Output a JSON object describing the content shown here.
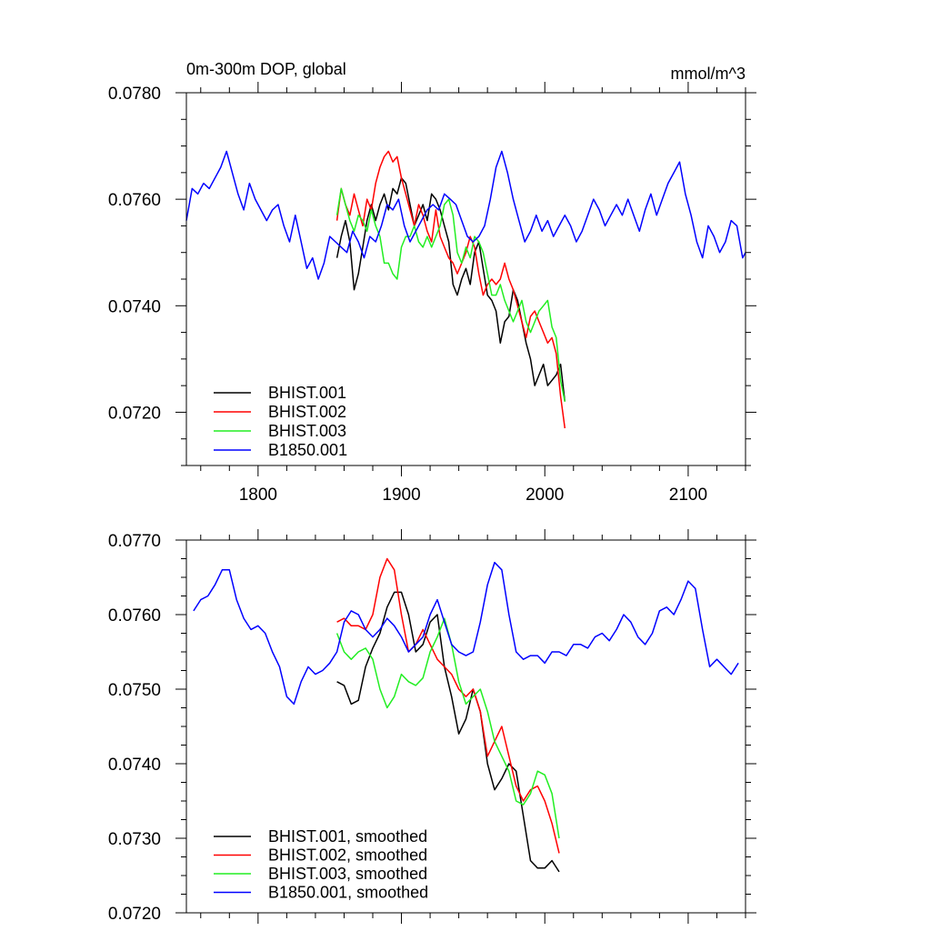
{
  "chart_data": [
    {
      "type": "line",
      "title": "0m-300m DOP, global",
      "units": "mmol/m^3",
      "xlim": [
        1750,
        2140
      ],
      "ylim": [
        0.071,
        0.078
      ],
      "x_ticks": [
        1800,
        1900,
        2000,
        2100
      ],
      "x_tick_labels": [
        "1800",
        "1900",
        "2000",
        "2100"
      ],
      "y_ticks": [
        0.072,
        0.074,
        0.076,
        0.078
      ],
      "y_tick_labels": [
        "0.0720",
        "0.0740",
        "0.0760",
        "0.0780"
      ],
      "legend_position": "bottom-left",
      "series": [
        {
          "name": "BHIST.001",
          "color": "#000000",
          "x": [
            1855,
            1858,
            1861,
            1864,
            1867,
            1870,
            1873,
            1876,
            1879,
            1882,
            1885,
            1888,
            1891,
            1894,
            1897,
            1900,
            1903,
            1906,
            1909,
            1912,
            1915,
            1918,
            1921,
            1924,
            1927,
            1930,
            1933,
            1936,
            1939,
            1942,
            1945,
            1948,
            1951,
            1954,
            1957,
            1960,
            1963,
            1966,
            1969,
            1972,
            1975,
            1978,
            1981,
            1984,
            1987,
            1990,
            1993,
            1996,
            1999,
            2002,
            2005,
            2008,
            2011,
            2014
          ],
          "values": [
            0.0749,
            0.0753,
            0.0756,
            0.0752,
            0.0743,
            0.0746,
            0.0751,
            0.0756,
            0.0759,
            0.0756,
            0.0759,
            0.0761,
            0.0758,
            0.0762,
            0.0761,
            0.0764,
            0.0763,
            0.0759,
            0.0755,
            0.0757,
            0.0759,
            0.0756,
            0.0761,
            0.076,
            0.0758,
            0.0755,
            0.0752,
            0.0744,
            0.0742,
            0.0745,
            0.0747,
            0.0744,
            0.075,
            0.0752,
            0.0747,
            0.0742,
            0.0741,
            0.0739,
            0.0733,
            0.0737,
            0.0738,
            0.0743,
            0.0741,
            0.0737,
            0.0733,
            0.073,
            0.0725,
            0.0727,
            0.0729,
            0.0725,
            0.0726,
            0.0727,
            0.0729,
            0.0722
          ]
        },
        {
          "name": "BHIST.002",
          "color": "#ff0000",
          "x": [
            1855,
            1858,
            1861,
            1864,
            1867,
            1870,
            1873,
            1876,
            1879,
            1882,
            1885,
            1888,
            1891,
            1894,
            1897,
            1900,
            1903,
            1906,
            1909,
            1912,
            1915,
            1918,
            1921,
            1924,
            1927,
            1930,
            1933,
            1936,
            1939,
            1942,
            1945,
            1948,
            1951,
            1954,
            1957,
            1960,
            1963,
            1966,
            1969,
            1972,
            1975,
            1978,
            1981,
            1984,
            1987,
            1990,
            1993,
            1996,
            1999,
            2002,
            2005,
            2008,
            2011,
            2014
          ],
          "values": [
            0.0756,
            0.0762,
            0.0759,
            0.0757,
            0.0761,
            0.0758,
            0.0755,
            0.076,
            0.0758,
            0.0763,
            0.0766,
            0.0768,
            0.0769,
            0.0767,
            0.0768,
            0.0764,
            0.0761,
            0.0758,
            0.0755,
            0.0759,
            0.0757,
            0.0754,
            0.0752,
            0.0758,
            0.0753,
            0.0751,
            0.0749,
            0.0748,
            0.0746,
            0.0748,
            0.075,
            0.0753,
            0.0751,
            0.0746,
            0.0742,
            0.0744,
            0.0745,
            0.0744,
            0.0745,
            0.0748,
            0.0745,
            0.0743,
            0.074,
            0.0737,
            0.0734,
            0.0738,
            0.0739,
            0.0737,
            0.0735,
            0.0733,
            0.0734,
            0.0731,
            0.0723,
            0.0717
          ]
        },
        {
          "name": "BHIST.003",
          "color": "#00ff00",
          "x": [
            1855,
            1858,
            1861,
            1864,
            1867,
            1870,
            1873,
            1876,
            1879,
            1882,
            1885,
            1888,
            1891,
            1894,
            1897,
            1900,
            1903,
            1906,
            1909,
            1912,
            1915,
            1918,
            1921,
            1924,
            1927,
            1930,
            1933,
            1936,
            1939,
            1942,
            1945,
            1948,
            1951,
            1954,
            1957,
            1960,
            1963,
            1966,
            1969,
            1972,
            1975,
            1978,
            1981,
            1984,
            1987,
            1990,
            1993,
            1996,
            1999,
            2002,
            2005,
            2008,
            2011,
            2014
          ],
          "values": [
            0.0757,
            0.0762,
            0.0759,
            0.0756,
            0.0754,
            0.0757,
            0.0756,
            0.0754,
            0.0758,
            0.0755,
            0.0753,
            0.0748,
            0.0748,
            0.0746,
            0.0745,
            0.0751,
            0.0753,
            0.0753,
            0.0755,
            0.0752,
            0.0751,
            0.0753,
            0.0751,
            0.0753,
            0.0755,
            0.0759,
            0.076,
            0.0757,
            0.075,
            0.0748,
            0.0751,
            0.0749,
            0.0753,
            0.0752,
            0.075,
            0.0746,
            0.0742,
            0.0742,
            0.0744,
            0.0741,
            0.0739,
            0.0737,
            0.0739,
            0.0741,
            0.0737,
            0.0735,
            0.0737,
            0.0739,
            0.074,
            0.0741,
            0.0736,
            0.0734,
            0.0726,
            0.0722
          ]
        },
        {
          "name": "B1850.001",
          "color": "#0000ff",
          "x": [
            1750,
            1754,
            1758,
            1762,
            1766,
            1770,
            1774,
            1778,
            1782,
            1786,
            1790,
            1794,
            1798,
            1802,
            1806,
            1810,
            1814,
            1818,
            1822,
            1826,
            1830,
            1834,
            1838,
            1842,
            1846,
            1850,
            1854,
            1858,
            1862,
            1866,
            1870,
            1874,
            1878,
            1882,
            1886,
            1890,
            1894,
            1898,
            1902,
            1906,
            1910,
            1914,
            1918,
            1922,
            1926,
            1930,
            1934,
            1938,
            1942,
            1946,
            1950,
            1954,
            1958,
            1962,
            1966,
            1970,
            1974,
            1978,
            1982,
            1986,
            1990,
            1994,
            1998,
            2002,
            2006,
            2010,
            2014,
            2018,
            2022,
            2026,
            2030,
            2034,
            2038,
            2042,
            2046,
            2050,
            2054,
            2058,
            2062,
            2066,
            2070,
            2074,
            2078,
            2082,
            2086,
            2090,
            2094,
            2098,
            2102,
            2106,
            2110,
            2114,
            2118,
            2122,
            2126,
            2130,
            2134,
            2138,
            2140
          ],
          "values": [
            0.0756,
            0.0762,
            0.0761,
            0.0763,
            0.0762,
            0.0764,
            0.0766,
            0.0769,
            0.0765,
            0.0761,
            0.0758,
            0.0763,
            0.076,
            0.0758,
            0.0756,
            0.0758,
            0.0759,
            0.0755,
            0.0752,
            0.0757,
            0.0752,
            0.0747,
            0.0749,
            0.0745,
            0.0748,
            0.0753,
            0.0752,
            0.0751,
            0.075,
            0.0754,
            0.0752,
            0.0749,
            0.0753,
            0.0752,
            0.0755,
            0.0759,
            0.0758,
            0.076,
            0.0755,
            0.0752,
            0.0754,
            0.0756,
            0.0758,
            0.0759,
            0.0758,
            0.0761,
            0.076,
            0.0759,
            0.0756,
            0.0753,
            0.0752,
            0.0753,
            0.0755,
            0.076,
            0.0766,
            0.0769,
            0.0765,
            0.076,
            0.0756,
            0.0752,
            0.0754,
            0.0757,
            0.0754,
            0.0756,
            0.0753,
            0.0755,
            0.0757,
            0.0755,
            0.0752,
            0.0754,
            0.0757,
            0.076,
            0.0758,
            0.0755,
            0.0757,
            0.0759,
            0.0757,
            0.076,
            0.0757,
            0.0754,
            0.0758,
            0.0761,
            0.0757,
            0.076,
            0.0763,
            0.0765,
            0.0767,
            0.0761,
            0.0757,
            0.0752,
            0.0749,
            0.0755,
            0.0753,
            0.075,
            0.0752,
            0.0756,
            0.0755,
            0.0749,
            0.075
          ]
        }
      ]
    },
    {
      "type": "line",
      "xlim": [
        1750,
        2140
      ],
      "ylim": [
        0.072,
        0.077
      ],
      "x_ticks": [
        1800,
        1900,
        2000,
        2100
      ],
      "y_ticks": [
        0.072,
        0.073,
        0.074,
        0.075,
        0.076,
        0.077
      ],
      "y_tick_labels": [
        "0.0720",
        "0.0730",
        "0.0740",
        "0.0750",
        "0.0760",
        "0.0770"
      ],
      "legend_position": "bottom-left",
      "series": [
        {
          "name": "BHIST.001, smoothed",
          "color": "#000000",
          "x": [
            1855,
            1860,
            1865,
            1870,
            1875,
            1880,
            1885,
            1890,
            1895,
            1900,
            1905,
            1910,
            1915,
            1920,
            1925,
            1930,
            1935,
            1940,
            1945,
            1950,
            1955,
            1960,
            1965,
            1970,
            1975,
            1980,
            1985,
            1990,
            1995,
            2000,
            2005,
            2010
          ],
          "values": [
            0.0751,
            0.07505,
            0.0748,
            0.07485,
            0.0753,
            0.07555,
            0.07575,
            0.0761,
            0.0763,
            0.0763,
            0.076,
            0.0755,
            0.0756,
            0.0759,
            0.076,
            0.0753,
            0.0749,
            0.0744,
            0.0746,
            0.075,
            0.0747,
            0.074,
            0.07365,
            0.0738,
            0.074,
            0.0739,
            0.0733,
            0.0727,
            0.0726,
            0.0726,
            0.0727,
            0.07255
          ]
        },
        {
          "name": "BHIST.002, smoothed",
          "color": "#ff0000",
          "x": [
            1855,
            1860,
            1865,
            1870,
            1875,
            1880,
            1885,
            1890,
            1895,
            1900,
            1905,
            1910,
            1915,
            1920,
            1925,
            1930,
            1935,
            1940,
            1945,
            1950,
            1955,
            1960,
            1965,
            1970,
            1975,
            1980,
            1985,
            1990,
            1995,
            2000,
            2005,
            2010
          ],
          "values": [
            0.0759,
            0.07595,
            0.07585,
            0.07585,
            0.0758,
            0.076,
            0.0765,
            0.07675,
            0.0766,
            0.076,
            0.0755,
            0.0756,
            0.0758,
            0.0756,
            0.0754,
            0.0753,
            0.0752,
            0.075,
            0.0749,
            0.075,
            0.0747,
            0.0741,
            0.0743,
            0.0745,
            0.0741,
            0.0737,
            0.0735,
            0.07365,
            0.0737,
            0.0735,
            0.0732,
            0.0728
          ]
        },
        {
          "name": "BHIST.003, smoothed",
          "color": "#00ff00",
          "x": [
            1855,
            1860,
            1865,
            1870,
            1875,
            1880,
            1885,
            1890,
            1895,
            1900,
            1905,
            1910,
            1915,
            1920,
            1925,
            1930,
            1935,
            1940,
            1945,
            1950,
            1955,
            1960,
            1965,
            1970,
            1975,
            1980,
            1985,
            1990,
            1995,
            2000,
            2005,
            2010
          ],
          "values": [
            0.07575,
            0.0755,
            0.0754,
            0.0755,
            0.07555,
            0.0754,
            0.075,
            0.07475,
            0.0749,
            0.0752,
            0.0751,
            0.07505,
            0.07515,
            0.0755,
            0.0757,
            0.07595,
            0.0756,
            0.0751,
            0.0748,
            0.0749,
            0.075,
            0.0747,
            0.0743,
            0.0741,
            0.0739,
            0.0735,
            0.07345,
            0.0736,
            0.0739,
            0.07385,
            0.0736,
            0.073
          ]
        },
        {
          "name": "B1850.001, smoothed",
          "color": "#0000ff",
          "x": [
            1755,
            1760,
            1765,
            1770,
            1775,
            1780,
            1785,
            1790,
            1795,
            1800,
            1805,
            1810,
            1815,
            1820,
            1825,
            1830,
            1835,
            1840,
            1845,
            1850,
            1855,
            1860,
            1865,
            1870,
            1875,
            1880,
            1885,
            1890,
            1895,
            1900,
            1905,
            1910,
            1915,
            1920,
            1925,
            1930,
            1935,
            1940,
            1945,
            1950,
            1955,
            1960,
            1965,
            1970,
            1975,
            1980,
            1985,
            1990,
            1995,
            2000,
            2005,
            2010,
            2015,
            2020,
            2025,
            2030,
            2035,
            2040,
            2045,
            2050,
            2055,
            2060,
            2065,
            2070,
            2075,
            2080,
            2085,
            2090,
            2095,
            2100,
            2105,
            2110,
            2115,
            2120,
            2125,
            2130,
            2135
          ],
          "values": [
            0.07605,
            0.0762,
            0.07625,
            0.0764,
            0.0766,
            0.0766,
            0.0762,
            0.07595,
            0.0758,
            0.07585,
            0.07575,
            0.0755,
            0.0753,
            0.0749,
            0.0748,
            0.0751,
            0.0753,
            0.0752,
            0.07525,
            0.07535,
            0.0755,
            0.0759,
            0.07605,
            0.076,
            0.0758,
            0.0757,
            0.0758,
            0.07595,
            0.07585,
            0.0757,
            0.0755,
            0.0756,
            0.0757,
            0.076,
            0.0762,
            0.0759,
            0.0756,
            0.0755,
            0.07545,
            0.0755,
            0.0759,
            0.0764,
            0.0767,
            0.0766,
            0.076,
            0.0755,
            0.0754,
            0.07545,
            0.07545,
            0.07535,
            0.0755,
            0.0755,
            0.07545,
            0.0756,
            0.0756,
            0.07555,
            0.0757,
            0.07575,
            0.07565,
            0.0758,
            0.076,
            0.0759,
            0.0757,
            0.0756,
            0.07575,
            0.07605,
            0.0761,
            0.076,
            0.0762,
            0.07645,
            0.07635,
            0.0758,
            0.0753,
            0.0754,
            0.0753,
            0.0752,
            0.07535
          ]
        }
      ]
    }
  ]
}
